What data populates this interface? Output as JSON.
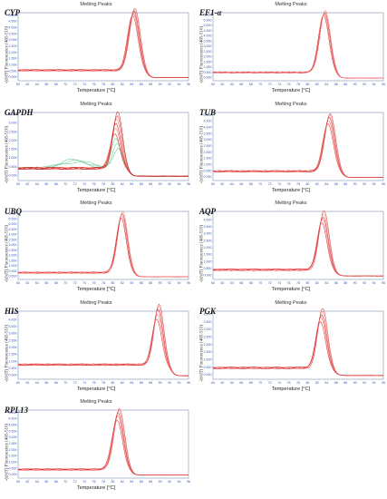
{
  "colors": {
    "main": "#e01b1b",
    "secondary": "#f06060",
    "green": "#4fc48a",
    "axis": "#3a5bb8"
  },
  "chart_data": [
    {
      "type": "line",
      "id": "cyp",
      "gene": "CYP",
      "title": "Melting Peaks",
      "xlabel": "Temperature [°C]",
      "ylabel": "-(d/dT) Fluorescence (465-510)",
      "x_ticks": [
        "60",
        "62",
        "64",
        "66",
        "68",
        "70",
        "72",
        "74",
        "76",
        "78",
        "80",
        "82",
        "84",
        "86",
        "88",
        "90",
        "92",
        "94",
        "96"
      ],
      "y_ticks": [
        "0.000",
        "0.500",
        "1.000",
        "1.500",
        "2.000",
        "2.500",
        "3.000",
        "3.500",
        "4.000",
        "4.500",
        "5.000"
      ],
      "xlim": [
        60,
        96
      ],
      "ylim": [
        -0.3,
        5.2
      ],
      "baseline": 0.6,
      "peak_x": 84.5,
      "peak_y": [
        4.5,
        4.7,
        4.85,
        4.95,
        5.1
      ],
      "width": 1.1,
      "green_series": false
    },
    {
      "type": "line",
      "id": "ef1a",
      "gene": "EF1-α",
      "title": "Melting Peaks",
      "xlabel": "Temperature [°C]",
      "ylabel": "-(d/dT) Fluorescence (465-510)",
      "x_ticks": [
        "60",
        "62",
        "64",
        "66",
        "68",
        "70",
        "72",
        "74",
        "76",
        "78",
        "80",
        "82",
        "84",
        "86",
        "88",
        "90",
        "92",
        "94",
        "96"
      ],
      "y_ticks": [
        "0.000",
        "0.500",
        "1.000",
        "1.500",
        "2.000",
        "2.500",
        "3.000",
        "3.500",
        "4.000",
        "4.500",
        "5.000",
        "5.500",
        "6.000"
      ],
      "xlim": [
        60,
        96
      ],
      "ylim": [
        -0.3,
        6.2
      ],
      "baseline": 0.55,
      "peak_x": 83.6,
      "peak_y": [
        5.5,
        5.7,
        5.85,
        6.0
      ],
      "width": 1.1,
      "green_series": false
    },
    {
      "type": "line",
      "id": "gapdh",
      "gene": "GAPDH",
      "title": "Melting Peaks",
      "xlabel": "Temperature [°C]",
      "ylabel": "-(d/dT) Fluorescence (465-510)",
      "x_ticks": [
        "60",
        "62",
        "64",
        "66",
        "68",
        "70",
        "72",
        "74",
        "76",
        "78",
        "80",
        "82",
        "84",
        "86",
        "88",
        "90",
        "92",
        "94",
        "96"
      ],
      "y_ticks": [
        "0.000",
        "0.500",
        "1.000",
        "1.500",
        "2.000",
        "2.500",
        "3.000",
        "3.500"
      ],
      "xlim": [
        60,
        96
      ],
      "ylim": [
        -0.3,
        3.6
      ],
      "baseline": 0.45,
      "peak_x": 80.8,
      "peak_y": [
        2.1,
        2.4,
        2.6,
        2.9,
        3.1,
        3.3
      ],
      "width": 1.0,
      "green_series": true
    },
    {
      "type": "line",
      "id": "tub",
      "gene": "TUB",
      "title": "Melting Peaks",
      "xlabel": "Temperature [°C]",
      "ylabel": "-(d/dT) Fluorescence (465-510)",
      "x_ticks": [
        "60",
        "62",
        "64",
        "66",
        "68",
        "70",
        "72",
        "74",
        "76",
        "78",
        "80",
        "82",
        "84",
        "86",
        "88",
        "90",
        "92",
        "94",
        "96"
      ],
      "y_ticks": [
        "0.000",
        "0.500",
        "1.000",
        "1.500",
        "2.000",
        "2.500",
        "3.000",
        "3.500",
        "4.000",
        "4.500",
        "5.000"
      ],
      "xlim": [
        60,
        96
      ],
      "ylim": [
        -0.3,
        5.2
      ],
      "baseline": 0.5,
      "peak_x": 84.6,
      "peak_y": [
        3.9,
        4.2,
        4.45,
        4.6,
        4.75
      ],
      "width": 1.1,
      "green_series": false
    },
    {
      "type": "line",
      "id": "ubq",
      "gene": "UBQ",
      "title": "Melting Peaks",
      "xlabel": "Temperature [°C]",
      "ylabel": "-(d/dT) Fluorescence (465-510)",
      "x_ticks": [
        "60",
        "62",
        "64",
        "66",
        "68",
        "70",
        "72",
        "74",
        "76",
        "78",
        "80",
        "82",
        "84",
        "86",
        "88",
        "90",
        "92",
        "94",
        "96"
      ],
      "y_ticks": [
        "0.000",
        "0.500",
        "1.000",
        "1.500",
        "2.000",
        "2.500",
        "3.000",
        "3.500",
        "4.000",
        "4.500",
        "5.000",
        "5.500",
        "6.000"
      ],
      "xlim": [
        60,
        96
      ],
      "ylim": [
        -0.3,
        6.2
      ],
      "baseline": 0.4,
      "peak_x": 82.0,
      "peak_y": [
        5.3,
        5.5,
        5.7,
        5.9
      ],
      "width": 1.05,
      "green_series": false
    },
    {
      "type": "line",
      "id": "aqp",
      "gene": "AQP",
      "title": "Melting Peaks",
      "xlabel": "Temperature [°C]",
      "ylabel": "-(d/dT) Fluorescence (465-510)",
      "x_ticks": [
        "60",
        "62",
        "64",
        "66",
        "68",
        "70",
        "72",
        "74",
        "76",
        "78",
        "80",
        "82",
        "84",
        "86",
        "88",
        "90",
        "92",
        "94",
        "96"
      ],
      "y_ticks": [
        "0.000",
        "0.500",
        "1.000",
        "1.500",
        "2.000",
        "2.500",
        "3.000",
        "3.500",
        "4.000",
        "4.500"
      ],
      "xlim": [
        60,
        96
      ],
      "ylim": [
        -0.3,
        4.6
      ],
      "baseline": 0.45,
      "peak_x": 83.3,
      "peak_y": [
        3.4,
        3.7,
        3.9,
        4.1,
        4.3
      ],
      "width": 1.05,
      "green_series": false
    },
    {
      "type": "line",
      "id": "his",
      "gene": "HIS",
      "title": "Melting Peaks",
      "xlabel": "Temperature [°C]",
      "ylabel": "-(d/dT) Fluorescence (465-510)",
      "x_ticks": [
        "60",
        "62",
        "64",
        "66",
        "68",
        "70",
        "72",
        "74",
        "76",
        "78",
        "80",
        "82",
        "84",
        "86",
        "88",
        "90",
        "92",
        "94",
        "96"
      ],
      "y_ticks": [
        "0.000",
        "0.500",
        "1.000",
        "1.500",
        "2.000",
        "2.500",
        "3.000",
        "3.500",
        "4.000",
        "4.500"
      ],
      "xlim": [
        60,
        96
      ],
      "ylim": [
        -0.3,
        4.6
      ],
      "baseline": 0.8,
      "peak_x": 89.6,
      "peak_y": [
        3.4,
        3.8,
        4.1,
        4.3,
        4.5
      ],
      "width": 1.0,
      "green_series": false
    },
    {
      "type": "line",
      "id": "pgk",
      "gene": "PGK",
      "title": "Melting Peaks",
      "xlabel": "Temperature [°C]",
      "ylabel": "-(d/dT) Fluorescence (465-510)",
      "x_ticks": [
        "60",
        "62",
        "64",
        "66",
        "68",
        "70",
        "72",
        "74",
        "76",
        "78",
        "80",
        "82",
        "84",
        "86",
        "88",
        "90",
        "92",
        "94",
        "96"
      ],
      "y_ticks": [
        "0.000",
        "0.500",
        "1.000",
        "1.500",
        "2.000",
        "2.500",
        "3.000",
        "3.500",
        "4.000"
      ],
      "xlim": [
        60,
        96
      ],
      "ylim": [
        -0.3,
        4.2
      ],
      "baseline": 0.5,
      "peak_x": 83.0,
      "peak_y": [
        3.1,
        3.4,
        3.6,
        3.8,
        4.0
      ],
      "width": 1.05,
      "green_series": false
    },
    {
      "type": "line",
      "id": "rpl13",
      "gene": "RPL13",
      "title": "Melting Peaks",
      "xlabel": "Temperature [°C]",
      "ylabel": "-(d/dT) Fluorescence (465-510)",
      "x_ticks": [
        "60",
        "62",
        "64",
        "66",
        "68",
        "70",
        "72",
        "74",
        "76",
        "78",
        "80",
        "82",
        "84",
        "86",
        "88",
        "90",
        "92",
        "94",
        "96"
      ],
      "y_ticks": [
        "0.000",
        "0.500",
        "1.000",
        "1.500",
        "2.000",
        "2.500",
        "3.000",
        "3.500",
        "4.000",
        "4.500",
        "5.000"
      ],
      "xlim": [
        60,
        96
      ],
      "ylim": [
        -0.3,
        5.2
      ],
      "baseline": 0.45,
      "peak_x": 81.2,
      "peak_y": [
        4.1,
        4.4,
        4.6,
        4.8,
        5.0
      ],
      "width": 1.1,
      "green_series": false
    }
  ]
}
